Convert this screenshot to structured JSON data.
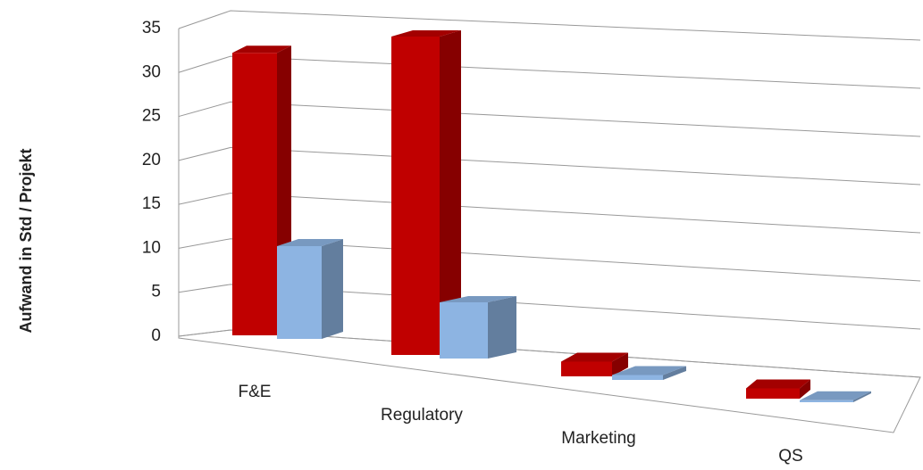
{
  "chart_data": {
    "type": "bar3d",
    "y_label": "Aufwand in Std / Projekt",
    "categories": [
      "F&E",
      "Regulatory",
      "Marketing",
      "QS"
    ],
    "series": [
      {
        "color": "#c00000",
        "values": [
          32,
          34,
          1.5,
          1
        ]
      },
      {
        "color": "#8db4e2",
        "values": [
          10.5,
          6,
          0.5,
          0.2
        ]
      }
    ],
    "ylim": [
      0,
      35
    ],
    "yticks": [
      0,
      5,
      10,
      15,
      20,
      25,
      30,
      35
    ],
    "grid": true
  }
}
